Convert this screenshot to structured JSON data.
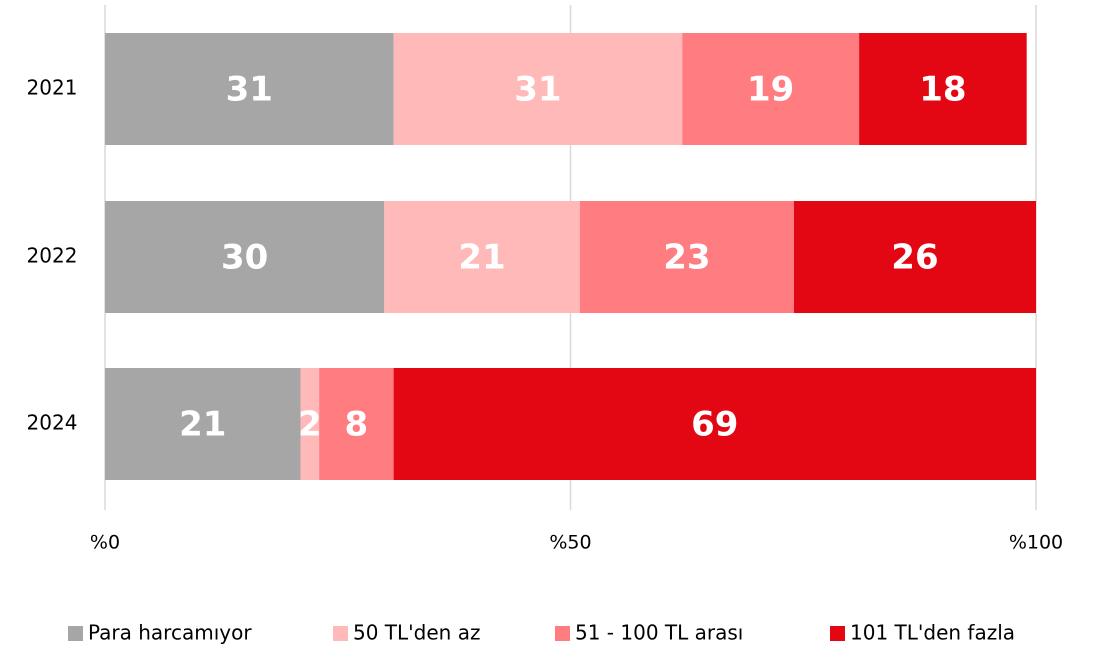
{
  "chart_data": {
    "type": "stacked_barh",
    "categories": [
      "2021",
      "2022",
      "2024"
    ],
    "series": [
      {
        "name": "Para harcamıyor",
        "color": "#a6a6a6",
        "values": [
          31,
          30,
          21
        ]
      },
      {
        "name": "50 TL'den az",
        "color": "#ffb9b9",
        "values": [
          31,
          21,
          2
        ]
      },
      {
        "name": "51 - 100 TL arası",
        "color": "#ff7c80",
        "values": [
          19,
          23,
          8
        ]
      },
      {
        "name": "101 TL'den fazla",
        "color": "#e30613",
        "values": [
          18,
          26,
          69
        ]
      }
    ],
    "xlim": [
      0,
      100
    ],
    "xticks": [
      {
        "value": 0,
        "label": "%0"
      },
      {
        "value": 50,
        "label": "%50"
      },
      {
        "value": 100,
        "label": "%100"
      }
    ],
    "grid": true,
    "legend": "bottom"
  }
}
